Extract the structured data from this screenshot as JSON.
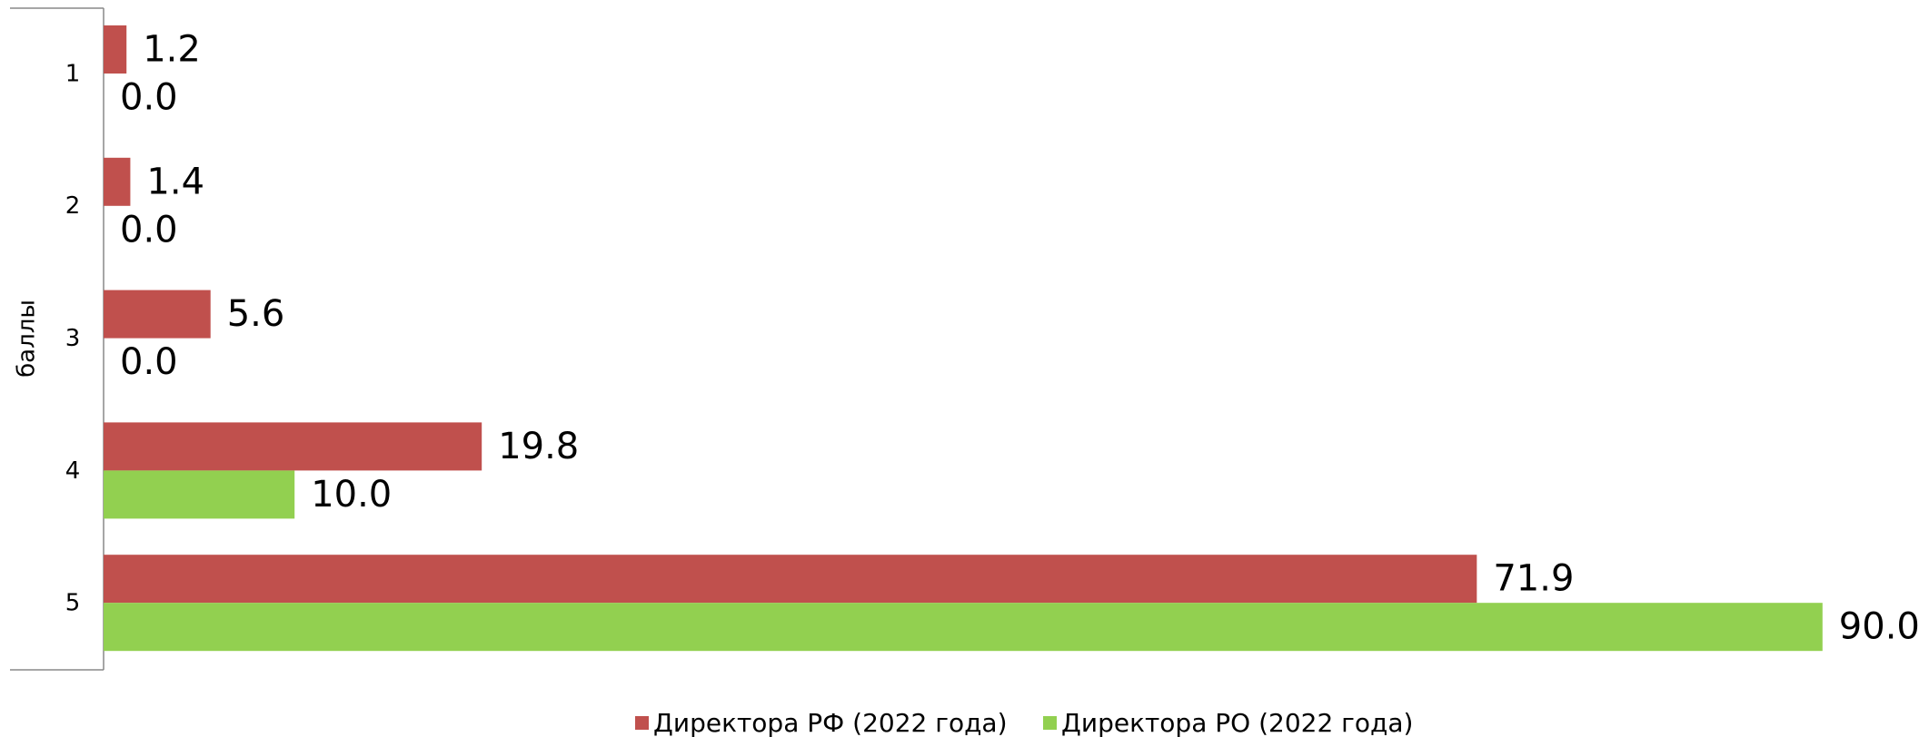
{
  "chart_data": {
    "type": "hbar",
    "y_axis_label": "баллы",
    "categories": [
      "1",
      "2",
      "3",
      "4",
      "5"
    ],
    "series": [
      {
        "name": "Директора РФ (2022 года)",
        "color": "#c0504d",
        "values": [
          1.2,
          1.4,
          5.6,
          19.8,
          71.9
        ],
        "value_labels": [
          "1.2",
          "1.4",
          "5.6",
          "19.8",
          "71.9"
        ]
      },
      {
        "name": "Директора РО (2022 года)",
        "color": "#92d050",
        "values": [
          0,
          0,
          0,
          10,
          90
        ],
        "value_labels": [
          "0.0",
          "0.0",
          "0.0",
          "10.0",
          "90.0"
        ]
      }
    ]
  }
}
